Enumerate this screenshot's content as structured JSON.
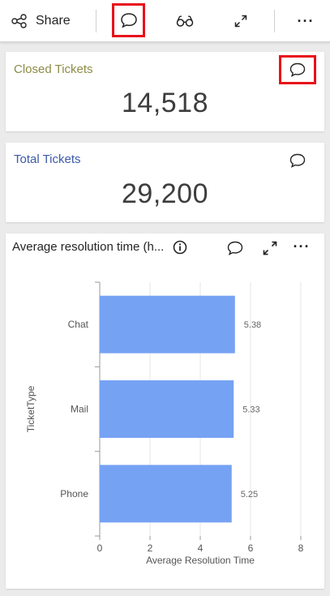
{
  "toolbar": {
    "share_label": "Share",
    "icons": [
      "share-icon",
      "comment-icon",
      "glasses-icon",
      "expand-icon",
      "more-icon"
    ]
  },
  "cards": [
    {
      "title": "Closed Tickets",
      "value": "14,518",
      "title_color": "#8c8c46"
    },
    {
      "title": "Total Tickets",
      "value": "29,200",
      "title_color": "#3c5aa8"
    }
  ],
  "chart_card": {
    "title": "Average resolution time (h..."
  },
  "chart_data": {
    "type": "bar",
    "orientation": "horizontal",
    "categories": [
      "Chat",
      "Mail",
      "Phone"
    ],
    "values": [
      5.38,
      5.33,
      5.25
    ],
    "data_labels": [
      "5.38",
      "5.33",
      "5.25"
    ],
    "xlabel": "Average Resolution Time",
    "ylabel": "TicketType",
    "xlim": [
      0,
      8
    ],
    "xticks": [
      "0",
      "2",
      "4",
      "6",
      "8"
    ],
    "grid": true,
    "bar_color": "#76a2f4"
  },
  "colors": {
    "highlight": "#e8101a"
  }
}
